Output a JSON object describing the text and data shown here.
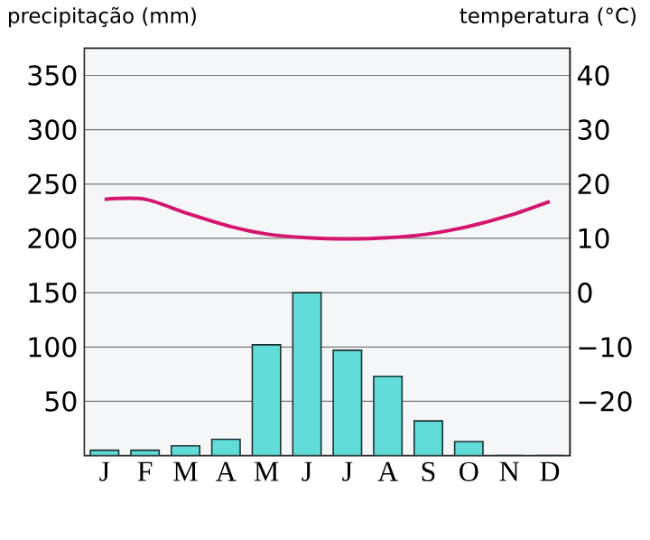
{
  "chart_data": {
    "type": "bar",
    "ylabel": "precipitação (mm)",
    "y2label": "temperatura (°C)",
    "categories": [
      "J",
      "F",
      "M",
      "A",
      "M",
      "J",
      "J",
      "A",
      "S",
      "O",
      "N",
      "D"
    ],
    "series": [
      {
        "values": [
          5,
          5,
          9,
          15,
          102,
          150,
          97,
          73,
          32,
          13,
          0,
          0
        ],
        "color": "#62dcd9"
      },
      {
        "type": "line",
        "axis": "y2",
        "color": "#d4166e",
        "values": [
          17.2,
          17.2,
          14.7,
          12.4,
          10.8,
          10.1,
          9.9,
          10.1,
          10.8,
          12.2,
          14.2,
          16.8
        ]
      }
    ],
    "ylim": [
      0,
      375
    ],
    "yticks": [
      50,
      100,
      150,
      200,
      250,
      300,
      350
    ],
    "y2lim": [
      -30,
      45
    ],
    "y2ticks": [
      {
        "value": -20,
        "label": "−20"
      },
      {
        "value": -10,
        "label": "−10"
      },
      0,
      10,
      20,
      30,
      40
    ],
    "grid": "y"
  }
}
